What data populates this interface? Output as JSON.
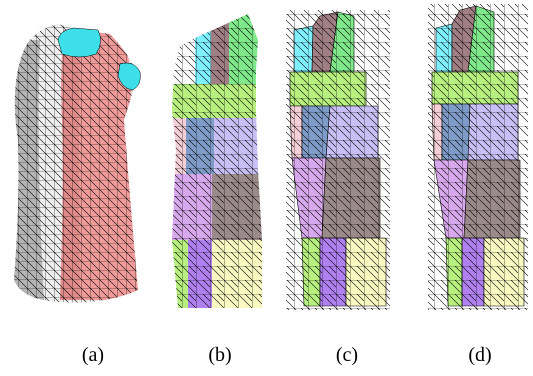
{
  "captions": [
    "(a)",
    "(b)",
    "(c)",
    "(d)"
  ],
  "colors": {
    "mesh_line": "#000000",
    "surface_white": "#f2f2f2",
    "surface_shade": "#b9b9b9",
    "surface_red": "#f09a9a",
    "surface_red_shade": "#d77878",
    "neck_cyan": "#3de0e8",
    "panel_cyan": "#7ff0ff",
    "panel_brown": "#a07f84",
    "panel_green": "#7fe88a",
    "panel_lime": "#b8f080",
    "panel_pink": "#f5cfd8",
    "panel_steelblue": "#7f9cc8",
    "panel_lavender": "#c8bff5",
    "panel_violet": "#d8a8ec",
    "panel_taupe": "#9a8a8a",
    "panel_purple": "#b080f0",
    "panel_cream": "#f8f8c0"
  }
}
